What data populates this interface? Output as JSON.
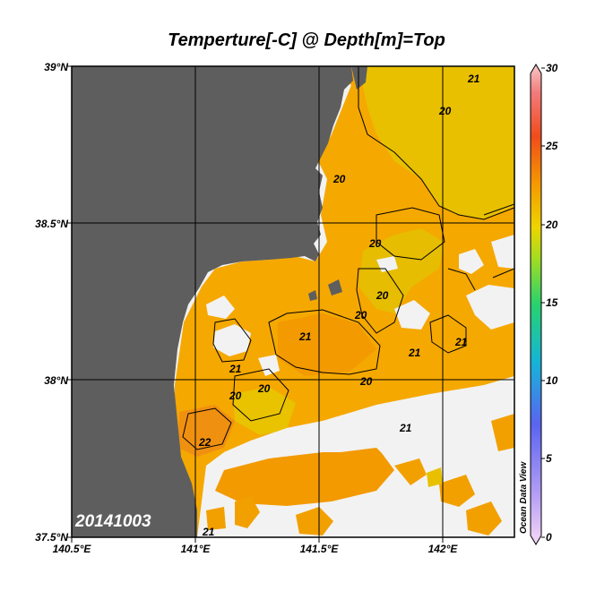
{
  "title": "Temperture[-C] @ Depth[m]=Top",
  "date_stamp": "20141003",
  "watermark": "Ocean Data View",
  "y_axis": {
    "ticks": [
      "39°N",
      "38.5°N",
      "38°N",
      "37.5°N"
    ]
  },
  "x_axis": {
    "ticks": [
      "140.5°E",
      "141°E",
      "141.5°E",
      "142°E"
    ]
  },
  "colorbar": {
    "min": 0,
    "max": 30,
    "ticks": [
      "30",
      "25",
      "20",
      "15",
      "10",
      "5",
      "0"
    ]
  },
  "contour_labels": [
    "20",
    "20",
    "20",
    "20",
    "20",
    "20",
    "20",
    "20",
    "21",
    "21",
    "21",
    "21",
    "21",
    "21",
    "21",
    "22"
  ],
  "colors": {
    "land": "#5e5e5e",
    "no_data": "#f2f2f2",
    "warm": "#f5a800",
    "mid": "#e8c800",
    "hot": "#f08a10"
  }
}
